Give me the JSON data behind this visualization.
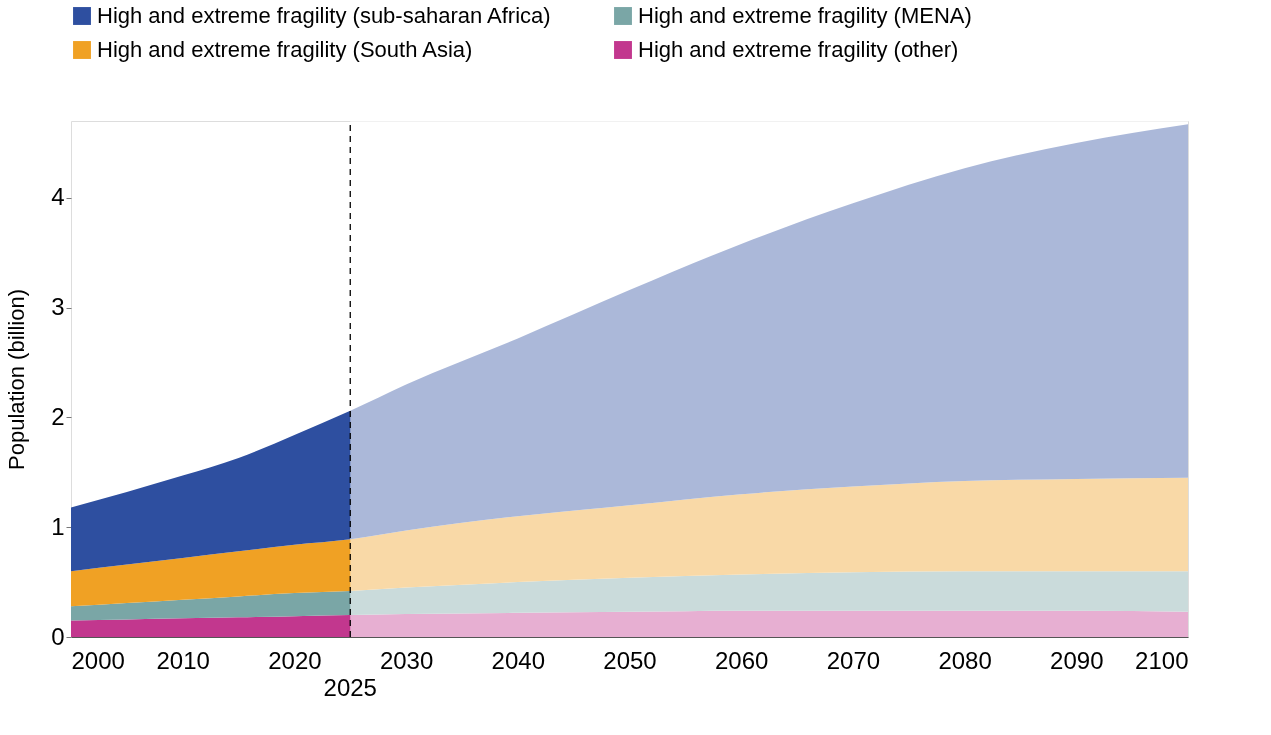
{
  "chart_data": {
    "type": "area",
    "stacked": true,
    "ylabel": "Population (billion)",
    "xlim": [
      2000,
      2100
    ],
    "xticks": [
      2000,
      2010,
      2020,
      2030,
      2040,
      2050,
      2060,
      2070,
      2080,
      2090,
      2100
    ],
    "ylim": [
      0,
      4.7
    ],
    "yticks": [
      0,
      1,
      2,
      3,
      4
    ],
    "grid": false,
    "legend": "top",
    "x": [
      2000,
      2005,
      2010,
      2015,
      2020,
      2025,
      2030,
      2040,
      2050,
      2060,
      2070,
      2080,
      2090,
      2100
    ],
    "series": [
      {
        "name": "High and extreme fragility (other)",
        "color": "#c2378e",
        "values": [
          0.15,
          0.16,
          0.17,
          0.18,
          0.19,
          0.2,
          0.21,
          0.22,
          0.23,
          0.24,
          0.24,
          0.24,
          0.24,
          0.23
        ]
      },
      {
        "name": "High and extreme fragility (MENA)",
        "color": "#7aa6a6",
        "values": [
          0.13,
          0.15,
          0.17,
          0.19,
          0.21,
          0.22,
          0.24,
          0.28,
          0.31,
          0.33,
          0.35,
          0.36,
          0.36,
          0.37
        ]
      },
      {
        "name": "High and extreme fragility (South Asia)",
        "color": "#f0a124",
        "values": [
          0.32,
          0.35,
          0.38,
          0.41,
          0.44,
          0.47,
          0.52,
          0.6,
          0.66,
          0.73,
          0.78,
          0.82,
          0.84,
          0.85
        ]
      },
      {
        "name": "High and extreme fragility (sub-saharan Africa)",
        "color": "#2e4fa0",
        "values": [
          0.58,
          0.66,
          0.75,
          0.85,
          1.0,
          1.17,
          1.33,
          1.62,
          1.96,
          2.28,
          2.58,
          2.85,
          3.06,
          3.22
        ]
      }
    ],
    "bands": [
      {
        "axis": "x",
        "from": 2025,
        "to": 2100,
        "color": "#ffffff"
      }
    ],
    "ref_lines": [
      {
        "axis": "x",
        "value": 2025,
        "label": "2025",
        "line_style": "dashed",
        "color": "#000000"
      }
    ]
  }
}
